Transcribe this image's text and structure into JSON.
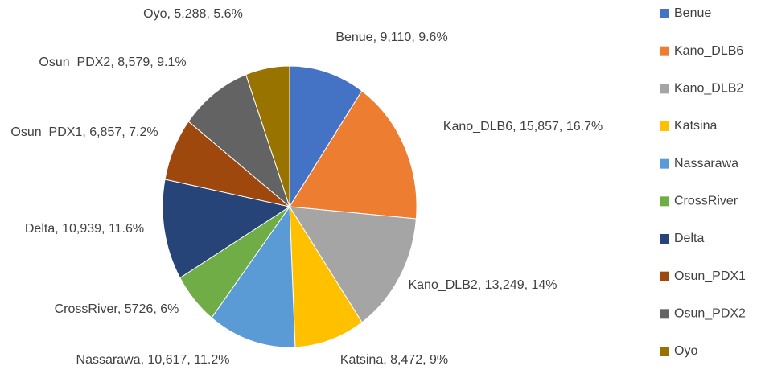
{
  "chart_data": {
    "type": "pie",
    "categories": [
      "Benue",
      "Kano_DLB6",
      "Kano_DLB2",
      "Katsina",
      "Nassarawa",
      "CrossRiver",
      "Delta",
      "Osun_PDX1",
      "Osun_PDX2",
      "Oyo"
    ],
    "values": [
      9110,
      15857,
      13249,
      8472,
      10617,
      5726,
      10939,
      6857,
      8579,
      5288
    ],
    "value_labels": [
      "Benue, 9,110, 9.6%",
      "Kano_DLB6, 15,857, 16.7%",
      "Kano_DLB2, 13,249, 14%",
      "Katsina, 8,472, 9%",
      "Nassarawa, 10,617, 11.2%",
      "CrossRiver, 5726, 6%",
      "Delta, 10,939, 11.6%",
      "Osun_PDX1, 6,857, 7.2%",
      "Osun_PDX2, 8,579, 9.1%",
      "Oyo, 5,288, 5.6%"
    ],
    "colors": [
      "#4472c4",
      "#ed7d31",
      "#a5a5a5",
      "#ffc000",
      "#5b9bd5",
      "#70ad47",
      "#264478",
      "#9e480e",
      "#636363",
      "#997300"
    ],
    "legend": "right"
  }
}
